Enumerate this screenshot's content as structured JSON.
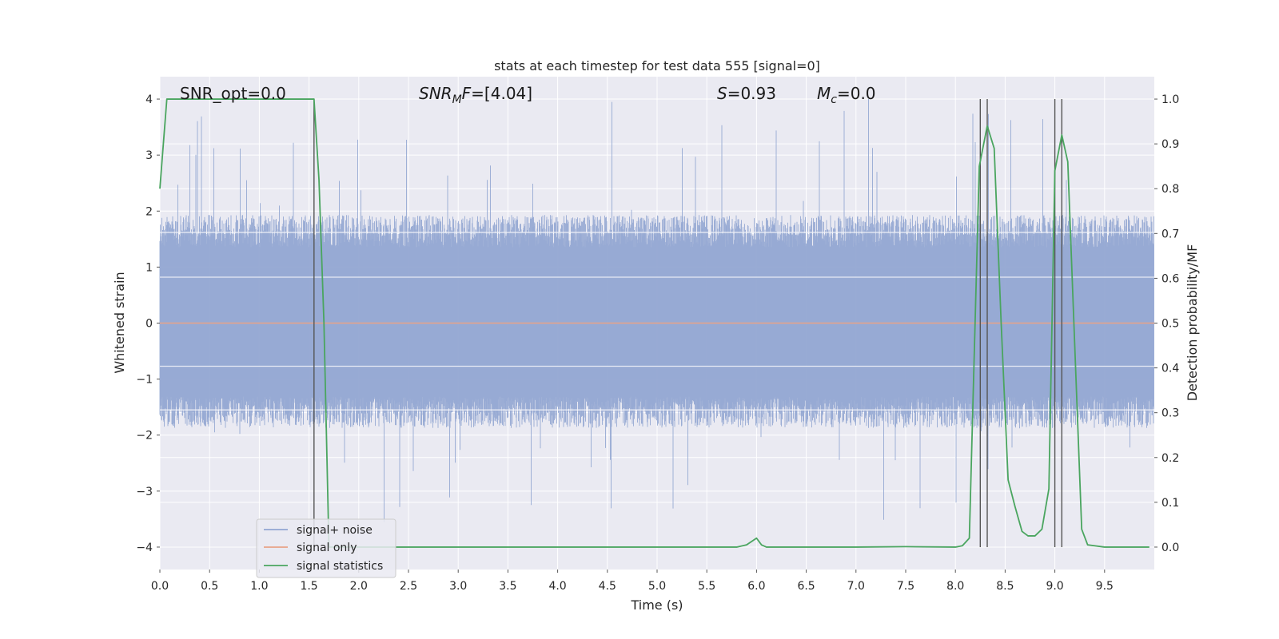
{
  "chart_data": {
    "type": "line",
    "title": "stats at each timestep for test data 555 [signal=0]",
    "xlabel": "Time (s)",
    "ylabel": "Whitened strain",
    "y2label": "Detection probability/MF",
    "xlim": [
      0.0,
      10.0
    ],
    "ylim": [
      -4.4,
      4.4
    ],
    "y2lim": [
      -0.05,
      1.05
    ],
    "xticks": [
      0.0,
      0.5,
      1.0,
      1.5,
      2.0,
      2.5,
      3.0,
      3.5,
      4.0,
      4.5,
      5.0,
      5.5,
      6.0,
      6.5,
      7.0,
      7.5,
      8.0,
      8.5,
      9.0,
      9.5
    ],
    "xtick_labels": [
      "0.0",
      "0.5",
      "1.0",
      "1.5",
      "2.0",
      "2.5",
      "3.0",
      "3.5",
      "4.0",
      "4.5",
      "5.0",
      "5.5",
      "6.0",
      "6.5",
      "7.0",
      "7.5",
      "8.0",
      "8.5",
      "9.0",
      "9.5"
    ],
    "yticks": [
      -4,
      -3,
      -2,
      -1,
      0,
      1,
      2,
      3,
      4
    ],
    "ytick_labels": [
      "−4",
      "−3",
      "−2",
      "−1",
      "0",
      "1",
      "2",
      "3",
      "4"
    ],
    "y2ticks": [
      0.0,
      0.1,
      0.2,
      0.3,
      0.4,
      0.5,
      0.6,
      0.7,
      0.8,
      0.9,
      1.0
    ],
    "y2tick_labels": [
      "0.0",
      "0.1",
      "0.2",
      "0.3",
      "0.4",
      "0.5",
      "0.6",
      "0.7",
      "0.8",
      "0.9",
      "1.0"
    ],
    "annotations": {
      "snr_opt": "SNR_opt=0.0",
      "snr_mf_name": "SNR",
      "snr_mf_sub": "M",
      "snr_mf_rest": "F",
      "snr_mf_value": "=[4.04]",
      "s_name": "S",
      "s_value": "=0.93",
      "mc_name": "M",
      "mc_sub": "c",
      "mc_value": "=0.0"
    },
    "legend": {
      "placement": "lower-left",
      "entries": [
        "signal+ noise",
        "signal only",
        "signal statistics"
      ]
    },
    "grid": true,
    "series": [
      {
        "name": "signal+ noise",
        "axis": "left",
        "color": "#92a6d2",
        "kind": "noise",
        "typical_range": [
          -1.6,
          1.65
        ],
        "peak_range": [
          -3.6,
          4.0
        ]
      },
      {
        "name": "signal only",
        "axis": "left",
        "color": "#e8a387",
        "x": [
          0.0,
          10.0
        ],
        "y": [
          0.0,
          0.0
        ]
      },
      {
        "name": "signal statistics",
        "axis": "right",
        "color": "#4aa55f",
        "x": [
          0.0,
          0.07,
          0.15,
          0.5,
          1.0,
          1.5,
          1.55,
          1.6,
          1.65,
          1.7,
          2.0,
          3.0,
          4.0,
          5.0,
          5.8,
          5.9,
          6.0,
          6.05,
          6.1,
          6.2,
          7.0,
          7.5,
          8.0,
          8.07,
          8.14,
          8.24,
          8.32,
          8.39,
          8.46,
          8.53,
          8.6,
          8.67,
          8.73,
          8.8,
          8.87,
          8.94,
          9.0,
          9.07,
          9.13,
          9.2,
          9.27,
          9.33,
          9.5,
          9.95
        ],
        "y": [
          0.8,
          1.0,
          1.0,
          1.0,
          1.0,
          1.0,
          1.0,
          0.82,
          0.5,
          0.0,
          0.0,
          0.0,
          0.0,
          0.0,
          0.0,
          0.005,
          0.02,
          0.005,
          0.0,
          0.0,
          0.0,
          0.001,
          0.0,
          0.003,
          0.02,
          0.85,
          0.94,
          0.89,
          0.5,
          0.15,
          0.09,
          0.035,
          0.025,
          0.025,
          0.04,
          0.13,
          0.84,
          0.92,
          0.86,
          0.45,
          0.04,
          0.005,
          0.0,
          0.0
        ]
      }
    ],
    "vertical_lines": [
      1.55,
      8.25,
      8.32,
      9.0,
      9.07
    ],
    "colors": {
      "background": "#eaeaf2",
      "grid": "#ffffff",
      "vline": "#555555"
    }
  }
}
